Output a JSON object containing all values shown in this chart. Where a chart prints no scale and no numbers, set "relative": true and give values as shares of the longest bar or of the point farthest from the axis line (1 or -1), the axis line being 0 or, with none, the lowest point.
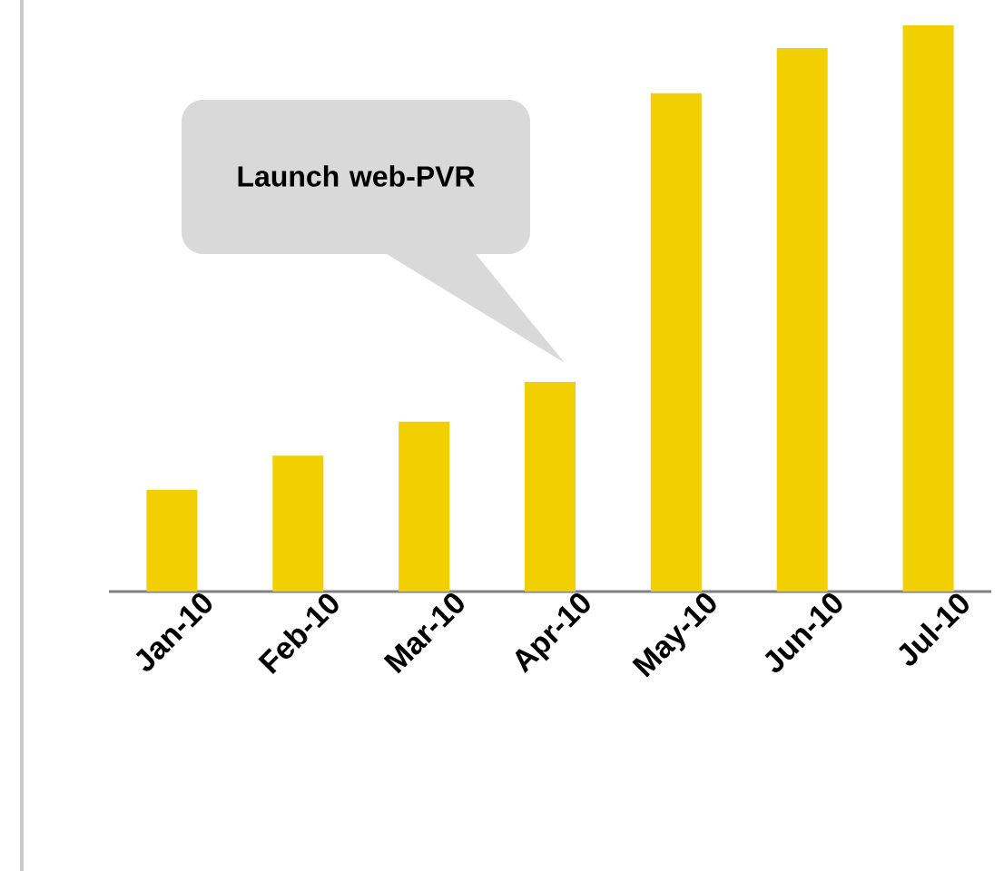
{
  "chart_data": {
    "type": "bar",
    "relative": true,
    "categories": [
      "Jan-10",
      "Feb-10",
      "Mar-10",
      "Apr-10",
      "May-10",
      "Jun-10",
      "Jul-10"
    ],
    "values": [
      0.18,
      0.24,
      0.3,
      0.37,
      0.88,
      0.96,
      1
    ],
    "color": "#f2cf00",
    "annotations": [
      "Launch web-PVR"
    ]
  }
}
